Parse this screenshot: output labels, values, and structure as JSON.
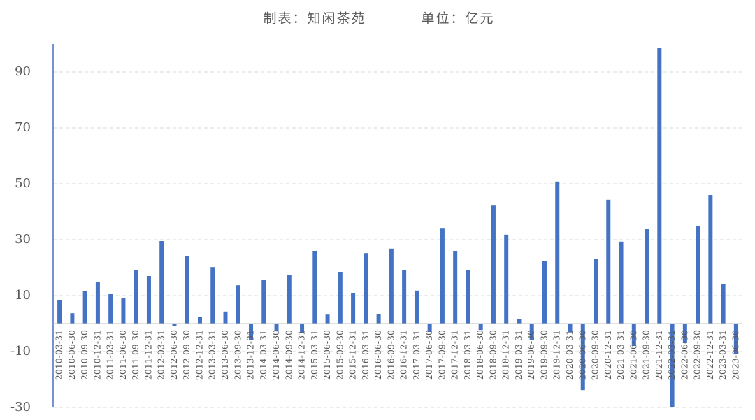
{
  "chart_data": {
    "type": "bar",
    "title": "制表：知闲茶苑",
    "unit": "单位：亿元",
    "categories": [
      "2010-03-31",
      "2010-06-30",
      "2010-09-30",
      "2010-12-31",
      "2011-03-31",
      "2011-06-30",
      "2011-09-30",
      "2011-12-31",
      "2012-03-31",
      "2012-06-30",
      "2012-09-30",
      "2012-12-31",
      "2013-03-31",
      "2013-06-30",
      "2013-09-30",
      "2013-12-31",
      "2014-03-31",
      "2014-06-30",
      "2014-09-30",
      "2014-12-31",
      "2015-03-31",
      "2015-06-30",
      "2015-09-30",
      "2015-12-31",
      "2016-03-31",
      "2016-06-30",
      "2016-09-30",
      "2016-12-31",
      "2017-03-31",
      "2017-06-30",
      "2017-09-30",
      "2017-12-31",
      "2018-03-31",
      "2018-06-30",
      "2018-09-30",
      "2018-12-31",
      "2019-03-31",
      "2019-06-30",
      "2019-09-30",
      "2019-12-31",
      "2020-03-31",
      "2020-06-30",
      "2020-09-30",
      "2020-12-31",
      "2021-03-31",
      "2021-06-30",
      "2021-09-30",
      "2021-12-31",
      "2022-03-31",
      "2022-06-30",
      "2022-09-30",
      "2022-12-31",
      "2023-03-31",
      "2023-06-30"
    ],
    "values": [
      8.5,
      3.7,
      11.7,
      15,
      10.7,
      9.2,
      19,
      17,
      29.5,
      -1,
      24,
      2.5,
      20.2,
      4.3,
      13.7,
      -5.8,
      15.7,
      -2.7,
      17.5,
      -3.2,
      26,
      3.2,
      18.5,
      11,
      25.2,
      3.5,
      26.8,
      19,
      11.8,
      -3,
      34.2,
      26,
      19,
      -2.3,
      42.2,
      31.8,
      1.5,
      -6,
      22.3,
      50.8,
      -3,
      -23.8,
      23,
      44.3,
      29.3,
      -8,
      34,
      98.5,
      -30,
      -7,
      35,
      46,
      14.2,
      -11
    ],
    "color": "#4472c4",
    "ylim": [
      -30,
      100
    ],
    "yticks": [
      -30,
      -10,
      10,
      30,
      50,
      70,
      90
    ],
    "grid": true
  }
}
